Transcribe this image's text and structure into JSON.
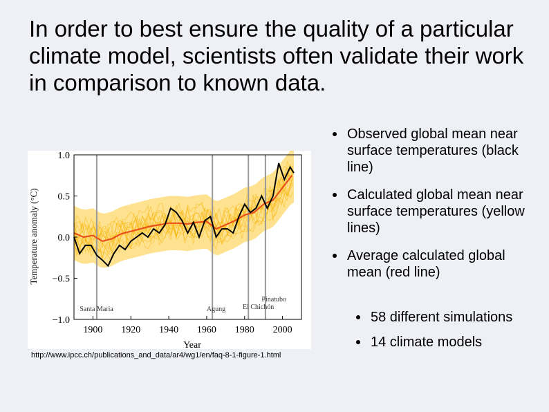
{
  "slide": {
    "title": "In order to best ensure the quality of a particular climate model, scientists often validate their work in comparison to known data.",
    "source_url": "http://www.ipcc.ch/publications_and_data/ar4/wg1/en/faq-8-1-figure-1.html",
    "bullets": [
      "Observed global mean near surface temperatures (black line)",
      "Calculated global mean near surface temperatures (yellow lines)",
      "Average calculated global mean (red line)"
    ],
    "sub_bullets": [
      "58 different simulations",
      "14 climate models"
    ]
  },
  "chart_data": {
    "type": "line",
    "xlabel": "Year",
    "ylabel": "Temperature anomaly (°C)",
    "xlim": [
      1890,
      2010
    ],
    "ylim": [
      -1.0,
      1.0
    ],
    "x_ticks": [
      "1900",
      "1920",
      "1940",
      "1960",
      "1980",
      "2000"
    ],
    "y_ticks": [
      "1.0",
      "0.5",
      "0.0",
      "−0.5",
      "−1.0"
    ],
    "background_color": "#ffffff",
    "colors": {
      "simulations": "#f5b300",
      "simulation_band": "#ffd86b",
      "model_mean": "#e8501a",
      "observed": "#000000",
      "eruption_lines": "#999999"
    },
    "eruptions": [
      {
        "name": "Santa Maria",
        "year": 1902
      },
      {
        "name": "Agung",
        "year": 1963
      },
      {
        "name": "El Chichón",
        "year": 1982
      },
      {
        "name": "Pinatubo",
        "year": 1991
      }
    ],
    "series": [
      {
        "x": [
          1890,
          1895,
          1900,
          1905,
          1910,
          1915,
          1920,
          1925,
          1930,
          1935,
          1940,
          1945,
          1950,
          1955,
          1960,
          1965,
          1970,
          1975,
          1980,
          1985,
          1990,
          1995,
          2000,
          2005
        ],
        "values": [
          0.05,
          0.0,
          0.02,
          -0.05,
          -0.02,
          0.04,
          0.07,
          0.1,
          0.13,
          0.15,
          0.17,
          0.17,
          0.16,
          0.18,
          0.19,
          0.1,
          0.15,
          0.2,
          0.27,
          0.3,
          0.4,
          0.45,
          0.6,
          0.75
        ]
      },
      {
        "x": [
          1890,
          1893,
          1896,
          1899,
          1902,
          1905,
          1908,
          1911,
          1914,
          1917,
          1920,
          1923,
          1926,
          1929,
          1932,
          1935,
          1938,
          1941,
          1944,
          1947,
          1950,
          1953,
          1956,
          1959,
          1962,
          1965,
          1968,
          1971,
          1974,
          1977,
          1980,
          1983,
          1986,
          1989,
          1992,
          1995,
          1998,
          2001,
          2004,
          2006
        ],
        "values": [
          0.0,
          -0.2,
          -0.1,
          -0.1,
          -0.22,
          -0.28,
          -0.35,
          -0.2,
          -0.1,
          -0.15,
          -0.05,
          0.0,
          0.05,
          0.0,
          0.1,
          0.05,
          0.15,
          0.35,
          0.3,
          0.2,
          0.05,
          0.18,
          0.0,
          0.2,
          0.25,
          0.0,
          0.1,
          0.1,
          0.05,
          0.25,
          0.4,
          0.3,
          0.35,
          0.5,
          0.35,
          0.5,
          0.9,
          0.7,
          0.85,
          0.78
        ]
      }
    ]
  }
}
